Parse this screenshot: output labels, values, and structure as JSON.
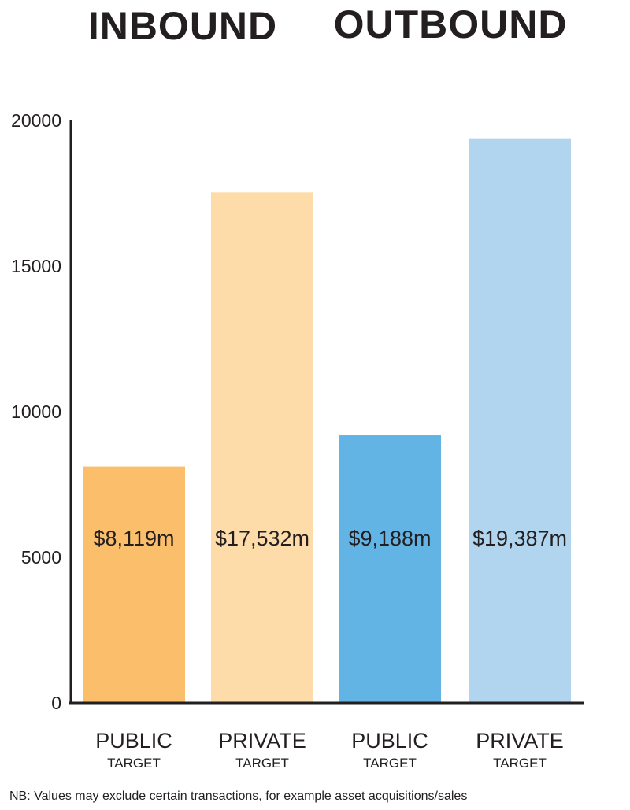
{
  "chart_data": {
    "type": "bar",
    "group_titles": [
      "INBOUND",
      "OUTBOUND"
    ],
    "categories": [
      {
        "group": "INBOUND",
        "label": "PUBLIC",
        "sublabel": "TARGET"
      },
      {
        "group": "INBOUND",
        "label": "PRIVATE",
        "sublabel": "TARGET"
      },
      {
        "group": "OUTBOUND",
        "label": "PUBLIC",
        "sublabel": "TARGET"
      },
      {
        "group": "OUTBOUND",
        "label": "PRIVATE",
        "sublabel": "TARGET"
      }
    ],
    "values": [
      8119,
      17532,
      9188,
      19387
    ],
    "data_labels": [
      "$8,119m",
      "$17,532m",
      "$9,188m",
      "$19,387m"
    ],
    "bar_colors": [
      "#fbbf6b",
      "#fddcaa",
      "#62b4e4",
      "#b1d5ef"
    ],
    "ylim": [
      0,
      20000
    ],
    "yticks": [
      0,
      5000,
      10000,
      15000,
      20000
    ],
    "ytick_labels": [
      "0",
      "5000",
      "10000",
      "15000",
      "20000"
    ],
    "grid": false,
    "legend": "none",
    "note": "NB: Values may exclude certain transactions, for example asset acquisitions/sales"
  }
}
